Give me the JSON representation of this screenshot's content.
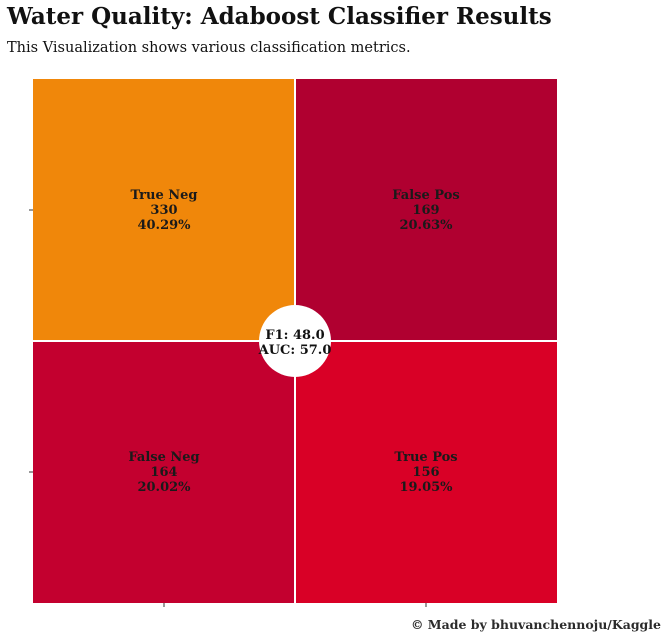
{
  "title": "Water Quality: Adaboost Classifier Results",
  "subtitle": "This Visualization shows various classification metrics.",
  "footer": "© Made by bhuvanchennoju/Kaggle",
  "chart_data": {
    "type": "heatmap",
    "title": "Water Quality: Adaboost Classifier Results",
    "subtitle": "This Visualization shows various classification metrics.",
    "matrix": [
      [
        330,
        169
      ],
      [
        164,
        156
      ]
    ],
    "cells": [
      {
        "label": "True Neg",
        "count": "330",
        "percent": "40.29%",
        "color": "#f0870a"
      },
      {
        "label": "False Pos",
        "count": "169",
        "percent": "20.63%",
        "color": "#b00030"
      },
      {
        "label": "False Neg",
        "count": "164",
        "percent": "20.02%",
        "color": "#c3002f"
      },
      {
        "label": "True Pos",
        "count": "156",
        "percent": "19.05%",
        "color": "#d90026"
      }
    ],
    "metrics": {
      "f1": "F1: 48.0",
      "auc": "AUC: 57.0"
    },
    "grid": false,
    "legend": "none"
  }
}
